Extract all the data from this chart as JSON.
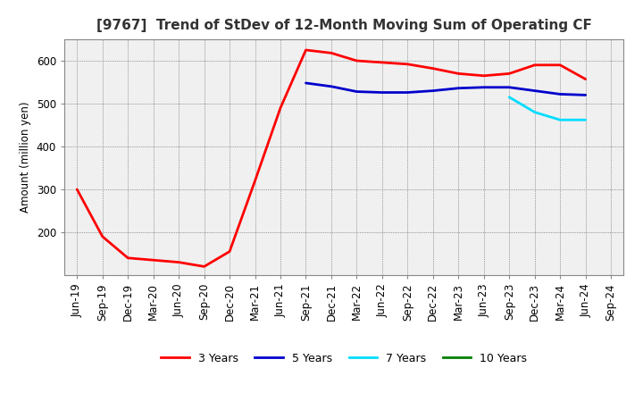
{
  "title": "[9767]  Trend of StDev of 12-Month Moving Sum of Operating CF",
  "ylabel": "Amount (million yen)",
  "x_labels": [
    "Jun-19",
    "Sep-19",
    "Dec-19",
    "Mar-20",
    "Jun-20",
    "Sep-20",
    "Dec-20",
    "Mar-21",
    "Jun-21",
    "Sep-21",
    "Dec-21",
    "Mar-22",
    "Jun-22",
    "Sep-22",
    "Dec-22",
    "Mar-23",
    "Jun-23",
    "Sep-23",
    "Dec-23",
    "Mar-24",
    "Jun-24",
    "Sep-24"
  ],
  "series_3y": {
    "label": "3 Years",
    "color": "#FF0000",
    "data": [
      300,
      190,
      140,
      135,
      130,
      120,
      155,
      320,
      490,
      625,
      618,
      600,
      596,
      592,
      582,
      570,
      565,
      570,
      590,
      590,
      557,
      null
    ]
  },
  "series_5y": {
    "label": "5 Years",
    "color": "#0000CC",
    "data": [
      null,
      null,
      null,
      null,
      null,
      null,
      null,
      null,
      null,
      548,
      540,
      528,
      526,
      526,
      530,
      536,
      538,
      538,
      530,
      522,
      520,
      null
    ]
  },
  "series_7y": {
    "label": "7 Years",
    "color": "#00DDFF",
    "data": [
      null,
      null,
      null,
      null,
      null,
      null,
      null,
      null,
      null,
      null,
      null,
      null,
      null,
      null,
      null,
      null,
      null,
      515,
      480,
      462,
      462,
      null
    ]
  },
  "series_10y": {
    "label": "10 Years",
    "color": "#008000",
    "data": [
      null,
      null,
      null,
      null,
      null,
      null,
      null,
      null,
      null,
      null,
      null,
      null,
      null,
      null,
      null,
      null,
      null,
      null,
      null,
      null,
      null,
      null
    ]
  },
  "ylim": [
    100,
    650
  ],
  "yticks": [
    200,
    300,
    400,
    500,
    600
  ],
  "plot_bg_color": "#F0F0F0",
  "fig_bg_color": "#FFFFFF",
  "grid_color": "#999999",
  "title_fontsize": 11,
  "axis_fontsize": 8.5,
  "tick_fontsize": 8.5,
  "line_width": 2.0
}
